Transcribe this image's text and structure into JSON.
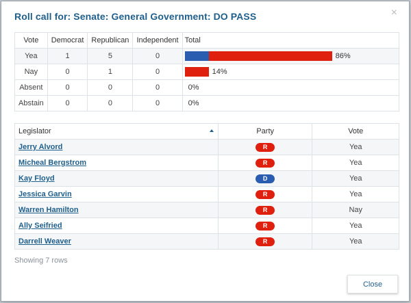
{
  "dialog": {
    "title": "Roll call for: Senate: General Government: DO PASS",
    "close_icon": "×",
    "close_button_label": "Close",
    "showing_text": "Showing 7 rows"
  },
  "colors": {
    "democrat": "#2a5cb0",
    "republican": "#e0200f",
    "title": "#1f5f8b"
  },
  "summary": {
    "headers": [
      "Vote",
      "Democrat",
      "Republican",
      "Independent",
      "Total"
    ],
    "rows": [
      {
        "vote": "Yea",
        "democrat": "1",
        "republican": "5",
        "independent": "0",
        "dem_fraction": 0.14,
        "rep_fraction": 0.72,
        "pct": "86%"
      },
      {
        "vote": "Nay",
        "democrat": "0",
        "republican": "1",
        "independent": "0",
        "dem_fraction": 0,
        "rep_fraction": 0.14,
        "pct": "14%"
      },
      {
        "vote": "Absent",
        "democrat": "0",
        "republican": "0",
        "independent": "0",
        "dem_fraction": 0,
        "rep_fraction": 0,
        "pct": "0%"
      },
      {
        "vote": "Abstain",
        "democrat": "0",
        "republican": "0",
        "independent": "0",
        "dem_fraction": 0,
        "rep_fraction": 0,
        "pct": "0%"
      }
    ]
  },
  "legislators": {
    "headers": {
      "name": "Legislator",
      "party": "Party",
      "vote": "Vote"
    },
    "sort_icon": "sort-ascending-icon",
    "rows": [
      {
        "name": "Jerry Alvord",
        "party": "R",
        "vote": "Yea"
      },
      {
        "name": "Micheal Bergstrom",
        "party": "R",
        "vote": "Yea"
      },
      {
        "name": "Kay Floyd",
        "party": "D",
        "vote": "Yea"
      },
      {
        "name": "Jessica Garvin",
        "party": "R",
        "vote": "Yea"
      },
      {
        "name": "Warren Hamilton",
        "party": "R",
        "vote": "Nay"
      },
      {
        "name": "Ally Seifried",
        "party": "R",
        "vote": "Yea"
      },
      {
        "name": "Darrell Weaver",
        "party": "R",
        "vote": "Yea"
      }
    ]
  }
}
